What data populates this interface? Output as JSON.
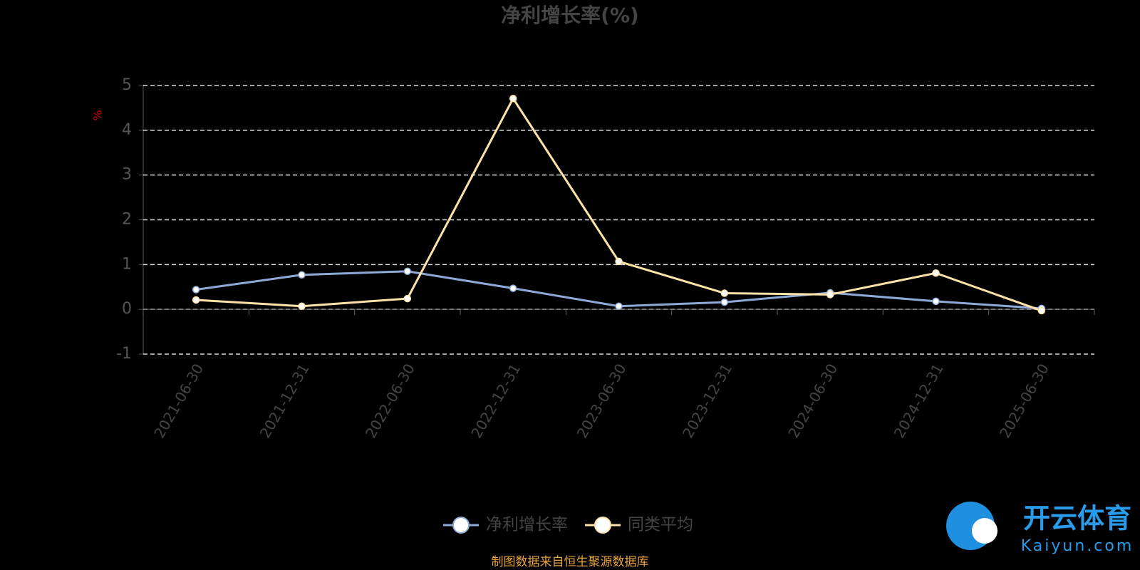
{
  "chart_data": {
    "type": "line",
    "title": "净利增长率(%)",
    "y_label": "%",
    "categories": [
      "2021-06-30",
      "2021-12-31",
      "2022-06-30",
      "2022-12-31",
      "2023-06-30",
      "2023-12-31",
      "2024-06-30",
      "2024-12-31",
      "2025-06-30"
    ],
    "series": [
      {
        "name": "净利增长率",
        "color": "#8fa9d6",
        "values": [
          0.44,
          0.77,
          0.85,
          0.47,
          0.07,
          0.16,
          0.37,
          0.18,
          0.02
        ]
      },
      {
        "name": "同类平均",
        "color": "#ffe2a8",
        "values": [
          0.21,
          0.07,
          0.24,
          4.71,
          1.07,
          0.36,
          0.33,
          0.81,
          -0.03
        ]
      }
    ],
    "ylim": [
      -1,
      5
    ],
    "yticks": [
      -1,
      0,
      1,
      2,
      3,
      4,
      5
    ],
    "grid": true,
    "source": "制图数据来自恒生聚源数据库",
    "watermark": {
      "brand": "开云体育",
      "site": "Kaiyun.com"
    }
  }
}
